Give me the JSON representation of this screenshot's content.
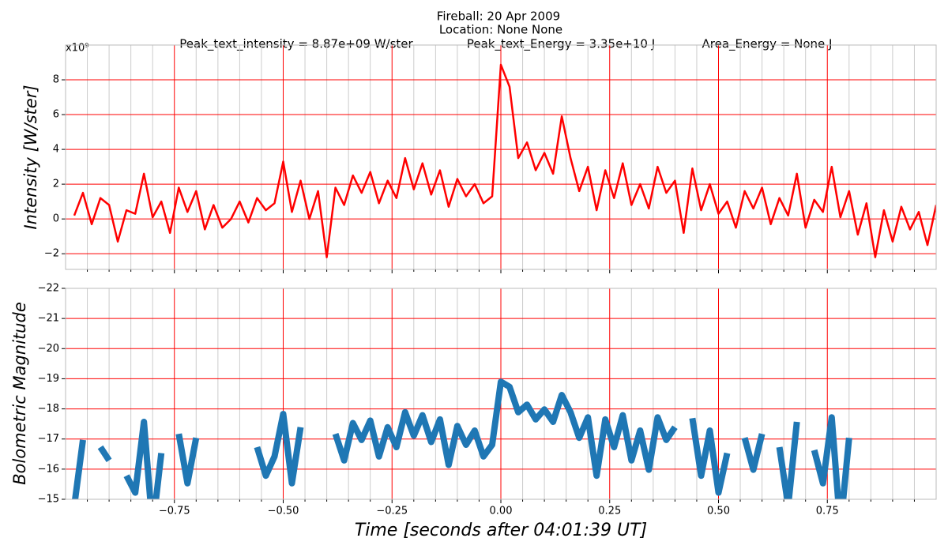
{
  "chart_data": [
    {
      "type": "line",
      "title": "Fireball: 20 Apr 2009",
      "subtitle": "Location: None  None",
      "annotations": [
        "Peak_text_intensity = 8.87e+09 W/ster",
        "Peak_text_Energy = 3.35e+10 J",
        "Area_Energy = None J"
      ],
      "y_label": "Intensity [W/ster]",
      "y_offset_label": "x10⁹",
      "x": [
        -0.98,
        -0.96,
        -0.94,
        -0.92,
        -0.9,
        -0.88,
        -0.86,
        -0.84,
        -0.82,
        -0.8,
        -0.78,
        -0.76,
        -0.74,
        -0.72,
        -0.7,
        -0.68,
        -0.66,
        -0.64,
        -0.62,
        -0.6,
        -0.58,
        -0.56,
        -0.54,
        -0.52,
        -0.5,
        -0.48,
        -0.46,
        -0.44,
        -0.42,
        -0.4,
        -0.38,
        -0.36,
        -0.34,
        -0.32,
        -0.3,
        -0.28,
        -0.26,
        -0.24,
        -0.22,
        -0.2,
        -0.18,
        -0.16,
        -0.14,
        -0.12,
        -0.1,
        -0.08,
        -0.06,
        -0.04,
        -0.02,
        0,
        0.02,
        0.04,
        0.06,
        0.08,
        0.1,
        0.12,
        0.14,
        0.16,
        0.18,
        0.2,
        0.22,
        0.24,
        0.26,
        0.28,
        0.3,
        0.32,
        0.34,
        0.36,
        0.38,
        0.4,
        0.42,
        0.44,
        0.46,
        0.48,
        0.5,
        0.52,
        0.54,
        0.56,
        0.58,
        0.6,
        0.62,
        0.64,
        0.66,
        0.68,
        0.7,
        0.72,
        0.74,
        0.76,
        0.78,
        0.8,
        0.82,
        0.84,
        0.86,
        0.88,
        0.9,
        0.92,
        0.94,
        0.96,
        0.98,
        1.0
      ],
      "series": [
        {
          "color": "#ff0000",
          "width": 2.5,
          "values": [
            0.2,
            1.5,
            -0.3,
            1.2,
            0.8,
            -1.3,
            0.5,
            0.3,
            2.6,
            0.1,
            1.0,
            -0.8,
            1.8,
            0.4,
            1.6,
            -0.6,
            0.8,
            -0.5,
            0.0,
            1.0,
            -0.2,
            1.2,
            0.5,
            0.9,
            3.3,
            0.4,
            2.2,
            0.0,
            1.6,
            -2.2,
            1.8,
            0.8,
            2.5,
            1.5,
            2.7,
            0.9,
            2.2,
            1.2,
            3.5,
            1.7,
            3.2,
            1.4,
            2.8,
            0.7,
            2.3,
            1.3,
            2.0,
            0.9,
            1.3,
            8.87,
            7.6,
            3.5,
            4.4,
            2.8,
            3.8,
            2.6,
            5.9,
            3.5,
            1.6,
            3.0,
            0.5,
            2.8,
            1.2,
            3.2,
            0.8,
            2.0,
            0.6,
            3.0,
            1.5,
            2.2,
            -0.8,
            2.9,
            0.5,
            2.0,
            0.3,
            1.0,
            -0.5,
            1.6,
            0.6,
            1.8,
            -0.3,
            1.2,
            0.2,
            2.6,
            -0.5,
            1.1,
            0.4,
            3.0,
            0.1,
            1.6,
            -0.9,
            0.9,
            -2.2,
            0.5,
            -1.3,
            0.7,
            -0.6,
            0.4,
            -1.5,
            0.8
          ]
        }
      ],
      "xlim": [
        -1,
        1
      ],
      "ylim": [
        -2.9,
        10
      ],
      "xticks": [
        -0.75,
        -0.5,
        -0.25,
        0,
        0.25,
        0.5,
        0.75
      ],
      "xticks_minor": [
        -0.95,
        -0.9,
        -0.85,
        -0.8,
        -0.7,
        -0.65,
        -0.6,
        -0.55,
        -0.45,
        -0.4,
        -0.35,
        -0.3,
        -0.2,
        -0.15,
        -0.1,
        -0.05,
        0.05,
        0.1,
        0.15,
        0.2,
        0.3,
        0.35,
        0.4,
        0.45,
        0.55,
        0.6,
        0.65,
        0.7,
        0.8,
        0.85,
        0.9,
        0.95
      ],
      "yticks": [
        {
          "value": -2,
          "label": "−2"
        },
        0,
        2,
        4,
        6,
        8
      ],
      "grid": true,
      "grid_color": "#ff0000",
      "minor_grid_color": "#cccccc"
    },
    {
      "type": "line",
      "y_label": "Bolometric Magnitude",
      "x_label": "Time [seconds after 04:01:39 UT]",
      "x": [
        -0.98,
        -0.96,
        -0.94,
        -0.92,
        -0.9,
        -0.88,
        -0.86,
        -0.84,
        -0.82,
        -0.8,
        -0.78,
        -0.76,
        -0.74,
        -0.72,
        -0.7,
        -0.68,
        -0.66,
        -0.64,
        -0.62,
        -0.6,
        -0.58,
        -0.56,
        -0.54,
        -0.52,
        -0.5,
        -0.48,
        -0.46,
        -0.44,
        -0.42,
        -0.4,
        -0.38,
        -0.36,
        -0.34,
        -0.32,
        -0.3,
        -0.28,
        -0.26,
        -0.24,
        -0.22,
        -0.2,
        -0.18,
        -0.16,
        -0.14,
        -0.12,
        -0.1,
        -0.08,
        -0.06,
        -0.04,
        -0.02,
        0,
        0.02,
        0.04,
        0.06,
        0.08,
        0.1,
        0.12,
        0.14,
        0.16,
        0.18,
        0.2,
        0.22,
        0.24,
        0.26,
        0.28,
        0.3,
        0.32,
        0.34,
        0.36,
        0.38,
        0.4,
        0.42,
        0.44,
        0.46,
        0.48,
        0.5,
        0.52,
        0.54,
        0.56,
        0.58,
        0.6,
        0.62,
        0.64,
        0.66,
        0.68,
        0.7,
        0.72,
        0.74,
        0.76,
        0.78,
        0.8,
        0.82,
        0.84,
        0.86,
        0.88,
        0.9,
        0.92,
        0.94,
        0.96,
        0.98,
        1.0
      ],
      "series": [
        {
          "color": "#1f77b4",
          "width": 8,
          "values": [
            -14.78,
            -16.97,
            null,
            -16.73,
            -16.29,
            null,
            -15.78,
            -15.22,
            -17.57,
            -14.03,
            -16.53,
            null,
            -17.17,
            -15.53,
            -17.04,
            null,
            -16.29,
            null,
            null,
            -16.53,
            null,
            -16.73,
            -15.78,
            -16.42,
            -17.83,
            -15.53,
            -17.39,
            null,
            -17.04,
            null,
            -17.17,
            -16.29,
            -17.53,
            -16.97,
            -17.61,
            -16.42,
            -17.39,
            -16.73,
            -17.89,
            -17.11,
            -17.79,
            -16.9,
            -17.65,
            -16.14,
            -17.43,
            -16.81,
            -17.28,
            -16.42,
            -16.81,
            -18.9,
            -18.73,
            -17.89,
            -18.14,
            -17.65,
            -17.98,
            -17.57,
            -18.46,
            -17.89,
            -17.04,
            -17.72,
            -15.78,
            -17.65,
            -16.73,
            -17.79,
            -16.29,
            -17.28,
            -15.98,
            -17.72,
            -16.97,
            -17.39,
            null,
            -17.69,
            -15.78,
            -17.28,
            -15.22,
            -16.53,
            null,
            -17.04,
            -15.98,
            -17.17,
            null,
            -16.73,
            -14.78,
            -17.57,
            null,
            -16.63,
            -15.53,
            -17.72,
            -14.03,
            -17.04,
            null,
            -16.42,
            null,
            -15.78,
            null,
            -16.14,
            null,
            -15.53,
            null,
            -16.29
          ]
        }
      ],
      "xlim": [
        -1,
        1
      ],
      "ylim": [
        -15,
        -22
      ],
      "xticks": [
        {
          "value": -0.75,
          "label": "−0.75"
        },
        {
          "value": -0.5,
          "label": "−0.50"
        },
        {
          "value": -0.25,
          "label": "−0.25"
        },
        {
          "value": 0,
          "label": "0.00"
        },
        {
          "value": 0.25,
          "label": "0.25"
        },
        {
          "value": 0.5,
          "label": "0.50"
        },
        {
          "value": 0.75,
          "label": "0.75"
        }
      ],
      "xticks_minor": [
        -0.95,
        -0.9,
        -0.85,
        -0.8,
        -0.7,
        -0.65,
        -0.6,
        -0.55,
        -0.45,
        -0.4,
        -0.35,
        -0.3,
        -0.2,
        -0.15,
        -0.1,
        -0.05,
        0.05,
        0.1,
        0.15,
        0.2,
        0.3,
        0.35,
        0.4,
        0.45,
        0.55,
        0.6,
        0.65,
        0.7,
        0.8,
        0.85,
        0.9,
        0.95
      ],
      "yticks": [
        {
          "value": -22,
          "label": "−22"
        },
        {
          "value": -21,
          "label": "−21"
        },
        {
          "value": -20,
          "label": "−20"
        },
        {
          "value": -19,
          "label": "−19"
        },
        {
          "value": -18,
          "label": "−18"
        },
        {
          "value": -17,
          "label": "−17"
        },
        {
          "value": -16,
          "label": "−16"
        },
        {
          "value": -15,
          "label": "−15"
        }
      ],
      "grid": true,
      "grid_color": "#ff0000",
      "minor_grid_color": "#cccccc"
    }
  ]
}
